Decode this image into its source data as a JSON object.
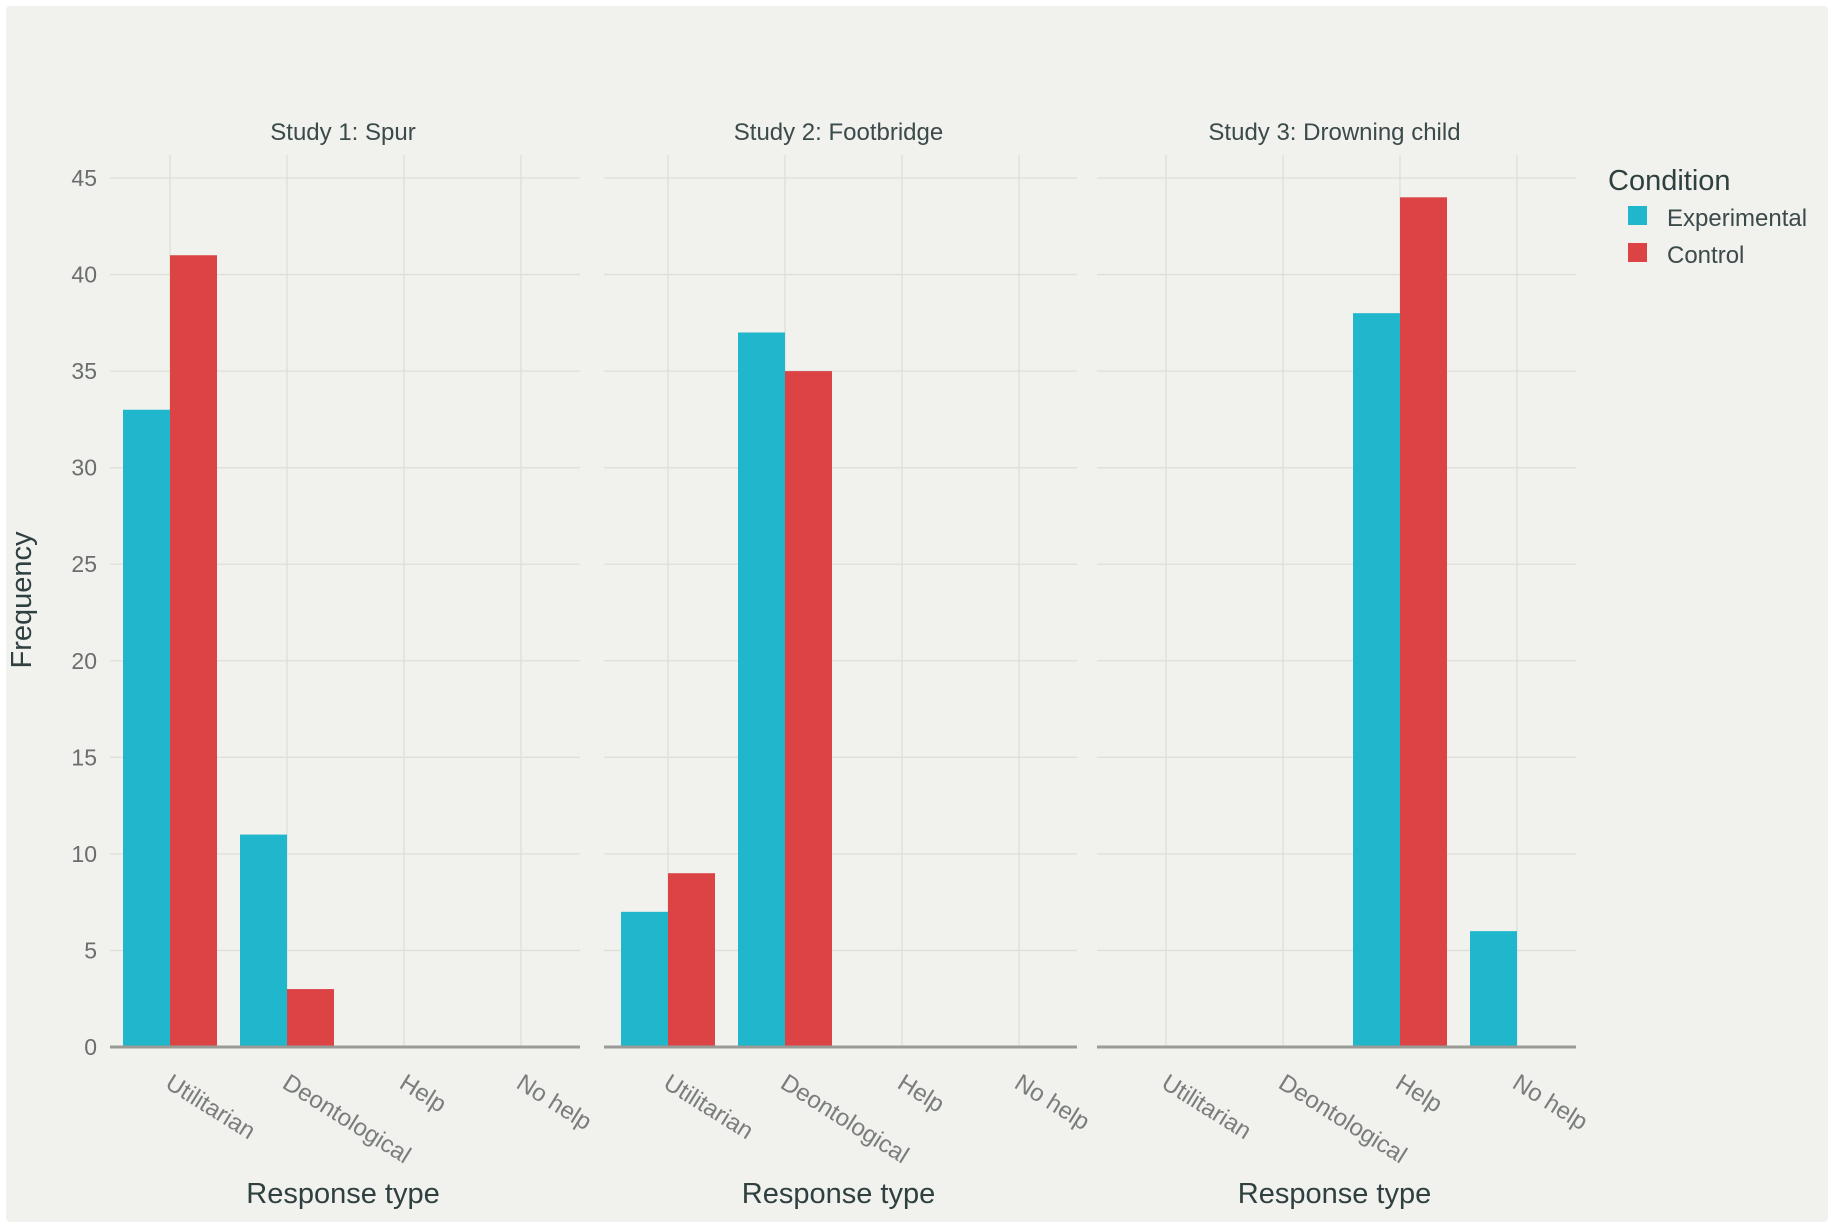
{
  "chart_data": {
    "type": "bar",
    "layout": "faceted",
    "ylabel": "Frequency",
    "ylim": [
      0,
      45
    ],
    "yticks": [
      0,
      5,
      10,
      15,
      20,
      25,
      30,
      35,
      40,
      45
    ],
    "grid": true,
    "categories": [
      "Utilitarian",
      "Deontological",
      "Help",
      "No help"
    ],
    "legend": {
      "title": "Condition",
      "placement": "top-right",
      "entries": [
        {
          "name": "Experimental",
          "color": "#20b6cb"
        },
        {
          "name": "Control",
          "color": "#db4345"
        }
      ]
    },
    "panels": [
      {
        "title": "Study 1: Spur",
        "xlabel": "Response type",
        "series": [
          {
            "name": "Experimental",
            "values": [
              33,
              11,
              0,
              0
            ]
          },
          {
            "name": "Control",
            "values": [
              41,
              3,
              0,
              0
            ]
          }
        ]
      },
      {
        "title": "Study 2: Footbridge",
        "xlabel": "Response type",
        "series": [
          {
            "name": "Experimental",
            "values": [
              7,
              37,
              0,
              0
            ]
          },
          {
            "name": "Control",
            "values": [
              9,
              35,
              0,
              0
            ]
          }
        ]
      },
      {
        "title": "Study 3: Drowning child",
        "xlabel": "Response type",
        "series": [
          {
            "name": "Experimental",
            "values": [
              0,
              0,
              38,
              6
            ]
          },
          {
            "name": "Control",
            "values": [
              0,
              0,
              44,
              0
            ]
          }
        ]
      }
    ]
  }
}
